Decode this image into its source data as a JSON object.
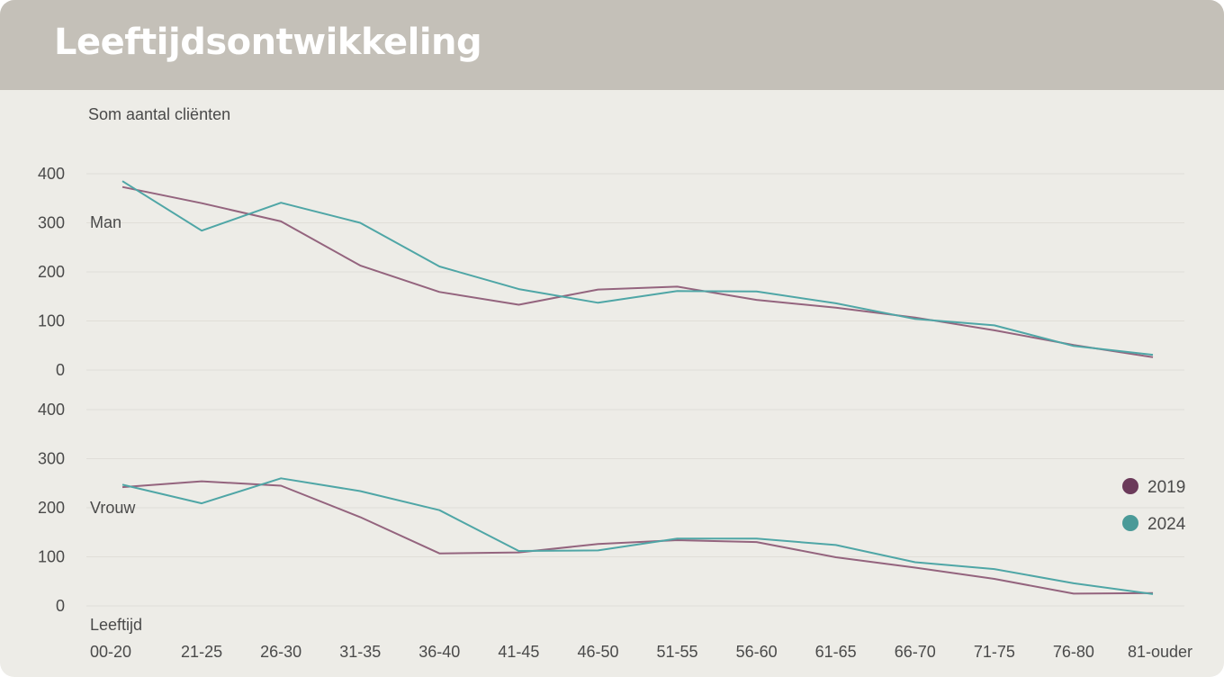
{
  "header": {
    "title": "Leeftijdsontwikkeling"
  },
  "chart_data": {
    "type": "line",
    "ylabel": "Som aantal cliënten",
    "xlabel": "Leeftijd",
    "categories": [
      "00-20",
      "21-25",
      "26-30",
      "31-35",
      "36-40",
      "41-45",
      "46-50",
      "51-55",
      "56-60",
      "61-65",
      "66-70",
      "71-75",
      "76-80",
      "81-ouder"
    ],
    "y_ticks": [
      0,
      100,
      200,
      300,
      400
    ],
    "ylim": [
      0,
      400
    ],
    "grid": true,
    "legend_position": "right",
    "legend": [
      {
        "name": "2019",
        "color": "#6b3a5a"
      },
      {
        "name": "2024",
        "color": "#4a9a98"
      }
    ],
    "panels": [
      {
        "name": "Man",
        "series": [
          {
            "name": "2019",
            "color": "#94647e",
            "values": [
              373,
              340,
              303,
              213,
              159,
              133,
              164,
              170,
              143,
              127,
              107,
              81,
              51,
              26
            ]
          },
          {
            "name": "2024",
            "color": "#4fa6a6",
            "values": [
              385,
              284,
              341,
              300,
              211,
              165,
              137,
              161,
              160,
              136,
              104,
              91,
              49,
              31
            ]
          }
        ]
      },
      {
        "name": "Vrouw",
        "series": [
          {
            "name": "2019",
            "color": "#94647e",
            "values": [
              242,
              254,
              245,
              181,
              107,
              109,
              126,
              134,
              130,
              99,
              78,
              55,
              25,
              26
            ]
          },
          {
            "name": "2024",
            "color": "#4fa6a6",
            "values": [
              247,
              209,
              260,
              234,
              195,
              112,
              113,
              137,
              137,
              124,
              89,
              75,
              46,
              24
            ]
          }
        ]
      }
    ]
  }
}
